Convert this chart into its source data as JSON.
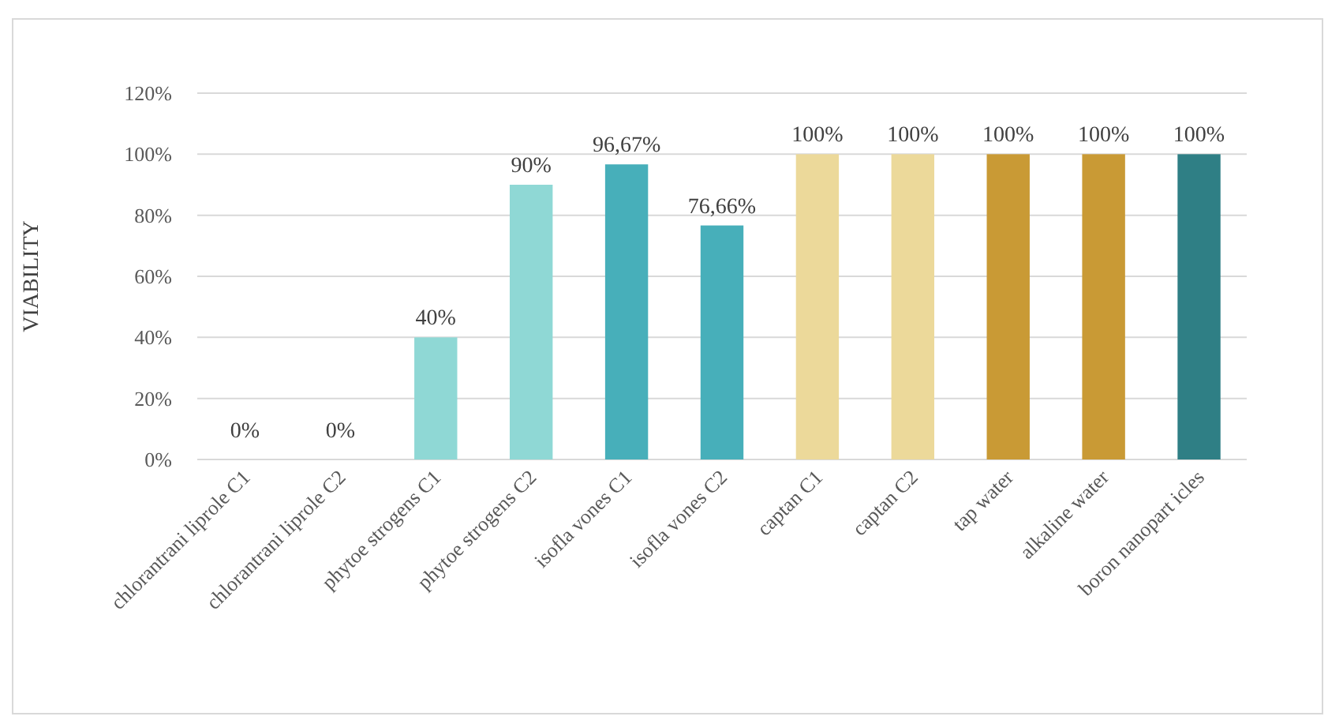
{
  "chart_data": {
    "type": "bar",
    "ylabel": "VIABILITY",
    "categories": [
      "chlorantrani liprole C1",
      "chlorantrani liprole C2",
      "phytoe strogens C1",
      "phytoe strogens C2",
      "isofla vones C1",
      "isofla vones C2",
      "captan C1",
      "captan C2",
      "tap water",
      "alkaline water",
      "boron nanopart icles"
    ],
    "values": [
      0,
      0,
      40,
      90,
      96.67,
      76.66,
      100,
      100,
      100,
      100,
      100
    ],
    "colors": [
      "#8fd8d5",
      "#8fd8d5",
      "#8fd8d5",
      "#8fd8d5",
      "#47afba",
      "#47afba",
      "#ecd99a",
      "#ecd99a",
      "#c99a35",
      "#c99a35",
      "#2f7f85"
    ],
    "value_labels": [
      "0%",
      "0%",
      "40%",
      "90%",
      "96,67%",
      "76,66%",
      "100%",
      "100%",
      "100%",
      "100%",
      "100%"
    ],
    "ylim": [
      0,
      120
    ],
    "yticks": [
      {
        "value": 0,
        "label": "0%"
      },
      {
        "value": 20,
        "label": "20%"
      },
      {
        "value": 40,
        "label": "40%"
      },
      {
        "value": 60,
        "label": "60%"
      },
      {
        "value": 80,
        "label": "80%"
      },
      {
        "value": 100,
        "label": "100%"
      },
      {
        "value": 120,
        "label": "120%"
      }
    ],
    "grid": "y"
  }
}
